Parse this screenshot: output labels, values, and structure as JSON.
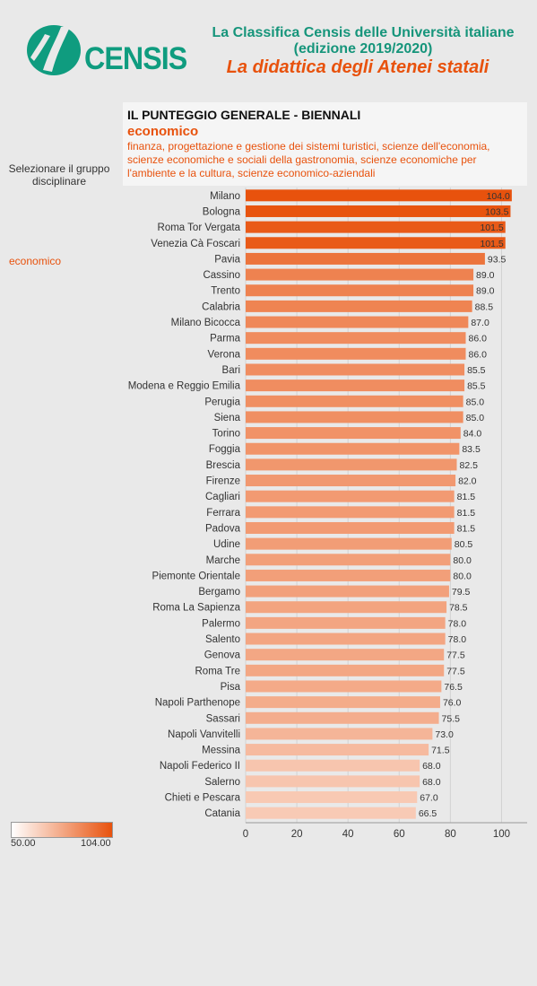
{
  "header": {
    "logo_text": "CENSIS",
    "title_line1": "La Classifica Censis delle Università italiane",
    "title_line2": "(edizione 2019/2020)",
    "subtitle": "La didattica degli Atenei statali"
  },
  "panel": {
    "title": "IL PUNTEGGIO GENERALE - BIENNALI",
    "group": "economico",
    "description": "finanza, progettazione e gestione dei sistemi turistici, scienze dell'economia, scienze economiche e sociali della gastronomia, scienze economiche per l'ambiente e la cultura, scienze economico-aziendali"
  },
  "selector": {
    "label": "Selezionare il gruppo disciplinare",
    "value": "economico"
  },
  "legend": {
    "min_label": "50.00",
    "max_label": "104.00"
  },
  "colors": {
    "low": "#ffffff",
    "high": "#e8520d",
    "teal": "#16957b"
  },
  "chart_data": {
    "type": "bar",
    "orientation": "horizontal",
    "categories": [
      "Milano",
      "Bologna",
      "Roma Tor Vergata",
      "Venezia Cà Foscari",
      "Pavia",
      "Cassino",
      "Trento",
      "Calabria",
      "Milano Bicocca",
      "Parma",
      "Verona",
      "Bari",
      "Modena e Reggio Emilia",
      "Perugia",
      "Siena",
      "Torino",
      "Foggia",
      "Brescia",
      "Firenze",
      "Cagliari",
      "Ferrara",
      "Padova",
      "Udine",
      "Marche",
      "Piemonte Orientale",
      "Bergamo",
      "Roma La Sapienza",
      "Palermo",
      "Salento",
      "Genova",
      "Roma Tre",
      "Pisa",
      "Napoli Parthenope",
      "Sassari",
      "Napoli Vanvitelli",
      "Messina",
      "Napoli Federico II",
      "Salerno",
      "Chieti e Pescara",
      "Catania"
    ],
    "values": [
      104.0,
      103.5,
      101.5,
      101.5,
      93.5,
      89.0,
      89.0,
      88.5,
      87.0,
      86.0,
      86.0,
      85.5,
      85.5,
      85.0,
      85.0,
      84.0,
      83.5,
      82.5,
      82.0,
      81.5,
      81.5,
      81.5,
      80.5,
      80.0,
      80.0,
      79.5,
      78.5,
      78.0,
      78.0,
      77.5,
      77.5,
      76.5,
      76.0,
      75.5,
      73.0,
      71.5,
      68.0,
      68.0,
      67.0,
      66.5
    ],
    "labels": [
      "104.0",
      "103.5",
      "101.5",
      "101.5",
      "93.5",
      "89.0",
      "89.0",
      "88.5",
      "87.0",
      "86.0",
      "86.0",
      "85.5",
      "85.5",
      "85.0",
      "85.0",
      "84.0",
      "83.5",
      "82.5",
      "82.0",
      "81.5",
      "81.5",
      "81.5",
      "80.5",
      "80.0",
      "80.0",
      "79.5",
      "78.5",
      "78.0",
      "78.0",
      "77.5",
      "77.5",
      "76.5",
      "76.0",
      "75.5",
      "73.0",
      "71.5",
      "68.0",
      "68.0",
      "67.0",
      "66.5"
    ],
    "xticks": [
      0,
      20,
      40,
      60,
      80,
      100
    ],
    "xlim": [
      0,
      110
    ],
    "color_range": [
      50,
      104
    ],
    "grid": true
  }
}
